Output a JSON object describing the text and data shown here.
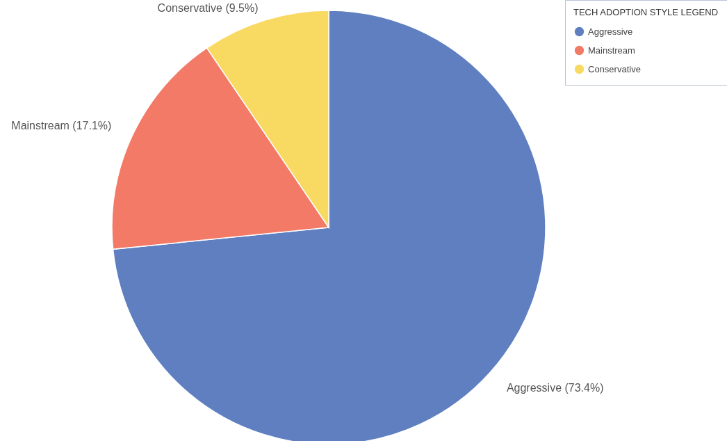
{
  "chart_data": {
    "type": "pie",
    "legend_title": "TECH ADOPTION STYLE LEGEND",
    "legend": "top right",
    "categories": [
      "Aggressive",
      "Mainstream",
      "Conservative"
    ],
    "values": [
      73.4,
      17.1,
      9.5
    ],
    "value_labels": [
      "(73.4%)",
      "(17.1%)",
      "(9.5%)"
    ],
    "colors": [
      "#5f7fc1",
      "#f27a66",
      "#f8da63"
    ]
  }
}
